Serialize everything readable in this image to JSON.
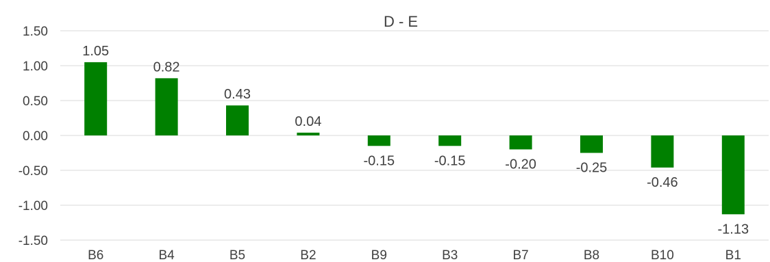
{
  "chart_data": {
    "type": "bar",
    "title": "D - E",
    "categories": [
      "B6",
      "B4",
      "B5",
      "B2",
      "B9",
      "B3",
      "B7",
      "B8",
      "B10",
      "B1"
    ],
    "values": [
      1.05,
      0.82,
      0.43,
      0.04,
      -0.15,
      -0.15,
      -0.2,
      -0.25,
      -0.46,
      -1.13
    ],
    "data_labels": [
      "1.05",
      "0.82",
      "0.43",
      "0.04",
      "-0.15",
      "-0.15",
      "-0.20",
      "-0.25",
      "-0.46",
      "-1.13"
    ],
    "ylim": [
      -1.5,
      1.5
    ],
    "yticks": [
      1.5,
      1.0,
      0.5,
      0.0,
      -0.5,
      -1.0,
      -1.5
    ],
    "ytick_labels": [
      "1.50",
      "1.00",
      "0.50",
      "0.00",
      "-0.50",
      "-1.00",
      "-1.50"
    ],
    "xlabel": "",
    "ylabel": "",
    "grid": true,
    "legend": "none",
    "bar_color": "#008000"
  }
}
